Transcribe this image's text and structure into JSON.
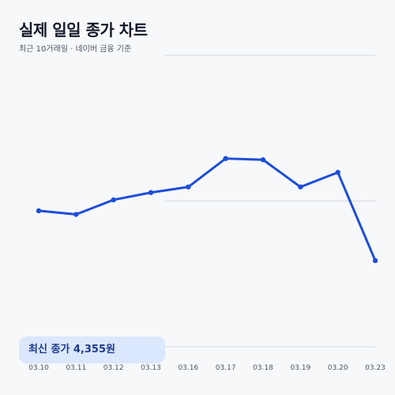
{
  "header": {
    "title": "실제 일일 종가 차트",
    "subtitle": "최근 10거래일 · 네이버 금융 기준"
  },
  "badge": {
    "text": "최신 종가 4,355원"
  },
  "colors": {
    "background": "#f7f8fa",
    "line": "#1d4ed8",
    "grid": "#dde2ea",
    "badge": "#dbe7fd",
    "badge_text": "#1e3a8a"
  },
  "chart_data": {
    "type": "line",
    "title": "실제 일일 종가 차트",
    "subtitle": "최근 10거래일 · 네이버 금융 기준",
    "categories": [
      "03.10",
      "03.11",
      "03.12",
      "03.13",
      "03.16",
      "03.17",
      "03.18",
      "03.19",
      "03.20",
      "03.23"
    ],
    "series": [
      {
        "values": [
          4560,
          4545,
          4605,
          4635,
          4658,
          4775,
          4770,
          4658,
          4718,
          4355
        ]
      }
    ],
    "ylim": [
      4000,
      5200
    ],
    "gridlines": [
      4000,
      4600,
      5200
    ],
    "grid": true,
    "markers": true,
    "legend": "none",
    "xlabel": "",
    "ylabel": ""
  }
}
